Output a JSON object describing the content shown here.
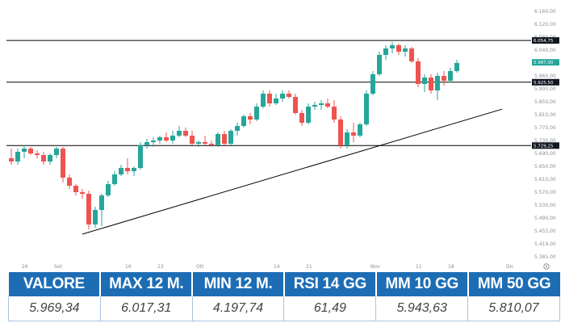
{
  "chart_data": {
    "type": "candlestick",
    "y_range": [
      5385,
      6160
    ],
    "y_ticks": [
      "6.160,00",
      "6.120,00",
      "6.080,00",
      "6.040,00",
      "6.000,00",
      "5.960,00",
      "5.900,00",
      "5.850,00",
      "5.810,00",
      "5.770,00",
      "5.730,00",
      "5.690,00",
      "5.650,00",
      "5.610,00",
      "5.570,00",
      "5.530,00",
      "5.490,00",
      "5.455,00",
      "5.419,00",
      "5.385,00"
    ],
    "x_labels": [
      {
        "label": "26",
        "index": 2
      },
      {
        "label": "Set",
        "index": 7
      },
      {
        "label": "16",
        "index": 18
      },
      {
        "label": "23",
        "index": 23
      },
      {
        "label": "Ott",
        "index": 29
      },
      {
        "label": "14",
        "index": 41
      },
      {
        "label": "21",
        "index": 46
      },
      {
        "label": "Nov",
        "index": 56
      },
      {
        "label": "11",
        "index": 63
      },
      {
        "label": "18",
        "index": 68
      },
      {
        "label": "Dic",
        "index": 77
      }
    ],
    "levels": [
      {
        "value": 6054.75,
        "label": "6.054,75"
      },
      {
        "value": 5925.5,
        "label": "5.925,50"
      },
      {
        "value": 5729.25,
        "label": "5.729,25"
      }
    ],
    "last_price": {
      "value": 5987.0,
      "label": "5.987,00",
      "color": "#26a69a"
    },
    "trendline": [
      [
        11,
        5455
      ],
      [
        76,
        5842
      ]
    ],
    "colors": {
      "up": "#26a69a",
      "down": "#ef5350",
      "line": "#000000"
    },
    "candles": [
      [
        5690,
        5720,
        5670,
        5680
      ],
      [
        5680,
        5720,
        5670,
        5710
      ],
      [
        5710,
        5730,
        5690,
        5720
      ],
      [
        5720,
        5725,
        5700,
        5705
      ],
      [
        5705,
        5715,
        5690,
        5700
      ],
      [
        5700,
        5710,
        5670,
        5680
      ],
      [
        5680,
        5705,
        5670,
        5700
      ],
      [
        5700,
        5725,
        5690,
        5720
      ],
      [
        5720,
        5725,
        5615,
        5630
      ],
      [
        5630,
        5640,
        5595,
        5605
      ],
      [
        5605,
        5610,
        5575,
        5585
      ],
      [
        5585,
        5595,
        5565,
        5580
      ],
      [
        5580,
        5590,
        5470,
        5485
      ],
      [
        5485,
        5540,
        5475,
        5530
      ],
      [
        5530,
        5580,
        5480,
        5575
      ],
      [
        5575,
        5620,
        5570,
        5610
      ],
      [
        5610,
        5650,
        5605,
        5640
      ],
      [
        5640,
        5670,
        5635,
        5660
      ],
      [
        5660,
        5690,
        5640,
        5650
      ],
      [
        5650,
        5665,
        5635,
        5660
      ],
      [
        5660,
        5740,
        5655,
        5730
      ],
      [
        5730,
        5750,
        5720,
        5740
      ],
      [
        5740,
        5755,
        5725,
        5745
      ],
      [
        5745,
        5760,
        5735,
        5755
      ],
      [
        5755,
        5770,
        5740,
        5745
      ],
      [
        5745,
        5775,
        5735,
        5760
      ],
      [
        5760,
        5790,
        5755,
        5775
      ],
      [
        5775,
        5785,
        5755,
        5760
      ],
      [
        5760,
        5775,
        5730,
        5735
      ],
      [
        5735,
        5745,
        5725,
        5740
      ],
      [
        5740,
        5760,
        5730,
        5735
      ],
      [
        5735,
        5745,
        5725,
        5730
      ],
      [
        5730,
        5770,
        5725,
        5765
      ],
      [
        5765,
        5775,
        5730,
        5735
      ],
      [
        5735,
        5780,
        5730,
        5775
      ],
      [
        5775,
        5800,
        5760,
        5790
      ],
      [
        5790,
        5825,
        5785,
        5820
      ],
      [
        5820,
        5830,
        5795,
        5810
      ],
      [
        5810,
        5860,
        5805,
        5850
      ],
      [
        5850,
        5900,
        5845,
        5890
      ],
      [
        5890,
        5900,
        5850,
        5860
      ],
      [
        5860,
        5890,
        5855,
        5875
      ],
      [
        5875,
        5900,
        5865,
        5890
      ],
      [
        5890,
        5900,
        5875,
        5880
      ],
      [
        5880,
        5890,
        5825,
        5830
      ],
      [
        5830,
        5840,
        5790,
        5800
      ],
      [
        5800,
        5860,
        5795,
        5850
      ],
      [
        5850,
        5865,
        5840,
        5855
      ],
      [
        5855,
        5870,
        5840,
        5860
      ],
      [
        5860,
        5875,
        5845,
        5850
      ],
      [
        5850,
        5870,
        5800,
        5810
      ],
      [
        5810,
        5820,
        5720,
        5730
      ],
      [
        5730,
        5780,
        5720,
        5770
      ],
      [
        5770,
        5800,
        5740,
        5760
      ],
      [
        5760,
        5800,
        5755,
        5795
      ],
      [
        5795,
        5900,
        5790,
        5890
      ],
      [
        5890,
        5960,
        5885,
        5950
      ],
      [
        5950,
        6020,
        5945,
        6010
      ],
      [
        6010,
        6040,
        5995,
        6030
      ],
      [
        6030,
        6050,
        6015,
        6040
      ],
      [
        6040,
        6045,
        6010,
        6020
      ],
      [
        6020,
        6040,
        6005,
        6030
      ],
      [
        6030,
        6035,
        5985,
        5990
      ],
      [
        5990,
        6000,
        5910,
        5920
      ],
      [
        5920,
        5950,
        5895,
        5940
      ],
      [
        5940,
        5950,
        5890,
        5900
      ],
      [
        5900,
        5955,
        5870,
        5945
      ],
      [
        5945,
        5960,
        5915,
        5930
      ],
      [
        5930,
        5970,
        5925,
        5960
      ],
      [
        5960,
        5995,
        5955,
        5985
      ]
    ]
  },
  "table": {
    "headers": [
      "VALORE",
      "MAX 12 M.",
      "MIN 12 M.",
      "RSI 14 GG",
      "MM 10 GG",
      "MM 50 GG"
    ],
    "values": [
      "5.969,34",
      "6.017,31",
      "4.197,74",
      "61,49",
      "5.943,63",
      "5.810,07"
    ]
  },
  "icons": {
    "settings": "gear-icon"
  }
}
